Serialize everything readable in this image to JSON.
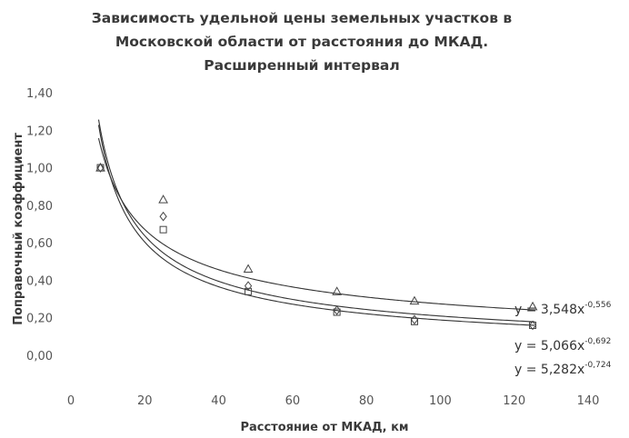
{
  "chart_data": {
    "type": "scatter",
    "title_lines": [
      "Зависимость удельной цены земельных участков в",
      "Московской области от расстояния до МКАД.",
      "Расширенный интервал"
    ],
    "xlabel": "Расстояние от МКАД, км",
    "ylabel": "Поправочный коэффициент",
    "xlim": [
      0,
      140
    ],
    "ylim": [
      0,
      1.4
    ],
    "x_ticks": [
      "0",
      "20",
      "40",
      "60",
      "80",
      "100",
      "120",
      "140"
    ],
    "y_ticks": [
      "0,00",
      "0,20",
      "0,40",
      "0,60",
      "0,80",
      "1,00",
      "1,20",
      "1,40"
    ],
    "grid": false,
    "series": [
      {
        "marker": "triangle",
        "points": [
          [
            8,
            1.0
          ],
          [
            25,
            0.83
          ],
          [
            48,
            0.46
          ],
          [
            72,
            0.34
          ],
          [
            93,
            0.29
          ],
          [
            125,
            0.26
          ]
        ],
        "fit": {
          "coef": 3.548,
          "exp": -0.556
        },
        "equation": {
          "base": "y = 3,548x",
          "sup": "-0,556"
        }
      },
      {
        "marker": "diamond",
        "points": [
          [
            8,
            1.0
          ],
          [
            25,
            0.74
          ],
          [
            48,
            0.37
          ],
          [
            72,
            0.24
          ],
          [
            93,
            0.19
          ],
          [
            125,
            0.16
          ]
        ],
        "fit": {
          "coef": 5.066,
          "exp": -0.692
        },
        "equation": {
          "base": "y = 5,066x",
          "sup": "-0,692"
        }
      },
      {
        "marker": "square",
        "points": [
          [
            8,
            1.0
          ],
          [
            25,
            0.67
          ],
          [
            48,
            0.34
          ],
          [
            72,
            0.23
          ],
          [
            93,
            0.18
          ],
          [
            125,
            0.16
          ]
        ],
        "fit": {
          "coef": 5.282,
          "exp": -0.724
        },
        "equation": {
          "base": "y = 5,282x",
          "sup": "-0,724"
        }
      }
    ]
  }
}
